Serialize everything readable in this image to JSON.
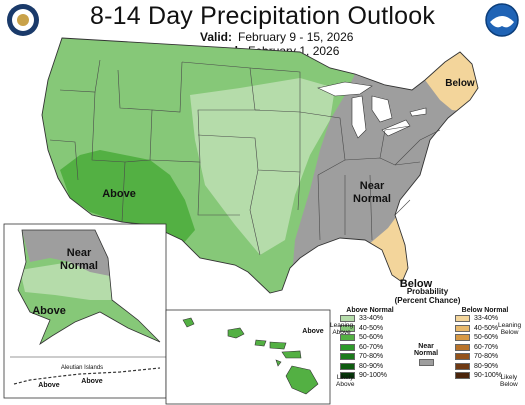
{
  "header": {
    "title": "8-14 Day Precipitation Outlook",
    "valid_label": "Valid:",
    "valid_value": "February 9 - 15, 2026",
    "issued_label": "Issued:",
    "issued_value": "February 1, 2026"
  },
  "logos": {
    "left": "doc-seal-logo",
    "right": "noaa-logo"
  },
  "regions": {
    "northeast": "Below",
    "southeast": "Below",
    "east_l1": "Near",
    "east_l2": "Normal",
    "southwest": "Above",
    "alaska_north_l1": "Near",
    "alaska_north_l2": "Normal",
    "alaska_south": "Above",
    "aleutian_title": "Aleutian Islands",
    "aleutian_above_1": "Above",
    "aleutian_above_2": "Above",
    "hawaii": "Above"
  },
  "colors": {
    "leaning_above": "#b5dcaa",
    "above_40_50": "#86c878",
    "above_50_60": "#53b043",
    "near_normal": "#9e9e9e",
    "leaning_below": "#f3d59b",
    "water": "#ffffff",
    "border": "#333333"
  },
  "legend": {
    "title_l1": "Probability",
    "title_l2": "(Percent Chance)",
    "above_header": "Above Normal",
    "below_header": "Below Normal",
    "near_l1": "Near",
    "near_l2": "Normal",
    "leaning_above_l1": "Leaning",
    "leaning_above_l2": "Above",
    "likely_above_l1": "Likely",
    "likely_above_l2": "Above",
    "leaning_below_l1": "Leaning",
    "leaning_below_l2": "Below",
    "likely_below_l1": "Likely",
    "likely_below_l2": "Below",
    "above_bins": [
      {
        "label": "33-40%",
        "color": "#b5dcaa"
      },
      {
        "label": "40-50%",
        "color": "#86c878"
      },
      {
        "label": "50-60%",
        "color": "#53b043"
      },
      {
        "label": "60-70%",
        "color": "#2e9a2a"
      },
      {
        "label": "70-80%",
        "color": "#1b7a1b"
      },
      {
        "label": "80-90%",
        "color": "#0e5c10"
      },
      {
        "label": "90-100%",
        "color": "#06380a"
      }
    ],
    "below_bins": [
      {
        "label": "33-40%",
        "color": "#f3d59b"
      },
      {
        "label": "40-50%",
        "color": "#e8b96d"
      },
      {
        "label": "50-60%",
        "color": "#d69844"
      },
      {
        "label": "60-70%",
        "color": "#b8732a"
      },
      {
        "label": "70-80%",
        "color": "#94531b"
      },
      {
        "label": "80-90%",
        "color": "#6f3a13"
      },
      {
        "label": "90-100%",
        "color": "#4a240b"
      }
    ]
  }
}
